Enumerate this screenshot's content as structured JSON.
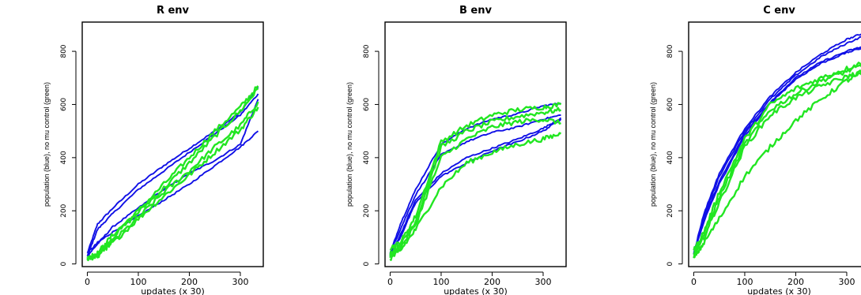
{
  "chart_data": [
    {
      "type": "line",
      "title": "R env",
      "xlabel": "updates (x 30)",
      "ylabel": "population (blue), no mu control (green)",
      "xticks": [
        0,
        100,
        200,
        300
      ],
      "yticks": [
        0,
        200,
        400,
        600,
        800
      ],
      "xlim": [
        -10,
        345
      ],
      "ylim": [
        -10,
        910
      ],
      "colors": {
        "treatment": "#1010e6",
        "control": "#22e622"
      },
      "series": [
        {
          "color": "blue",
          "x": [
            0,
            20,
            50,
            100,
            150,
            200,
            250,
            300,
            335
          ],
          "y": [
            40,
            150,
            210,
            300,
            370,
            435,
            500,
            570,
            665
          ]
        },
        {
          "color": "blue",
          "x": [
            0,
            20,
            50,
            100,
            150,
            200,
            250,
            300,
            335
          ],
          "y": [
            30,
            130,
            190,
            280,
            350,
            420,
            490,
            560,
            640
          ]
        },
        {
          "color": "blue",
          "x": [
            0,
            20,
            50,
            100,
            150,
            200,
            250,
            300,
            335
          ],
          "y": [
            30,
            75,
            140,
            210,
            280,
            340,
            390,
            450,
            620
          ]
        },
        {
          "color": "blue",
          "x": [
            0,
            20,
            50,
            100,
            150,
            200,
            250,
            300,
            335
          ],
          "y": [
            40,
            80,
            120,
            180,
            240,
            300,
            370,
            440,
            500
          ]
        },
        {
          "color": "green",
          "x": [
            0,
            20,
            50,
            100,
            150,
            200,
            250,
            300,
            335
          ],
          "y": [
            20,
            40,
            110,
            200,
            300,
            400,
            500,
            590,
            670
          ]
        },
        {
          "color": "green",
          "x": [
            0,
            20,
            50,
            100,
            150,
            200,
            250,
            300,
            335
          ],
          "y": [
            20,
            40,
            100,
            195,
            285,
            380,
            480,
            575,
            660
          ]
        },
        {
          "color": "green",
          "x": [
            0,
            20,
            50,
            100,
            150,
            200,
            250,
            300,
            335
          ],
          "y": [
            20,
            30,
            85,
            175,
            270,
            350,
            440,
            520,
            610
          ]
        },
        {
          "color": "green",
          "x": [
            0,
            20,
            50,
            100,
            150,
            200,
            250,
            300,
            335
          ],
          "y": [
            20,
            30,
            80,
            170,
            255,
            335,
            420,
            505,
            590
          ]
        }
      ]
    },
    {
      "type": "line",
      "title": "B env",
      "xlabel": "updates (x 30)",
      "ylabel": "population (blue), no mu control (green)",
      "xticks": [
        0,
        100,
        200,
        300
      ],
      "yticks": [
        0,
        200,
        400,
        600,
        800
      ],
      "xlim": [
        -10,
        345
      ],
      "ylim": [
        -10,
        910
      ],
      "colors": {
        "treatment": "#1010e6",
        "control": "#22e622"
      },
      "series": [
        {
          "color": "blue",
          "x": [
            0,
            20,
            50,
            100,
            150,
            200,
            250,
            300,
            335
          ],
          "y": [
            40,
            150,
            280,
            450,
            510,
            545,
            565,
            595,
            605
          ]
        },
        {
          "color": "blue",
          "x": [
            0,
            20,
            50,
            100,
            150,
            200,
            250,
            300,
            335
          ],
          "y": [
            40,
            130,
            260,
            410,
            460,
            495,
            515,
            545,
            560
          ]
        },
        {
          "color": "blue",
          "x": [
            0,
            20,
            50,
            100,
            150,
            200,
            250,
            300,
            335
          ],
          "y": [
            30,
            110,
            240,
            340,
            400,
            435,
            470,
            510,
            550
          ]
        },
        {
          "color": "blue",
          "x": [
            0,
            20,
            50,
            100,
            150,
            200,
            250,
            300,
            335
          ],
          "y": [
            30,
            100,
            230,
            330,
            380,
            425,
            460,
            500,
            545
          ]
        },
        {
          "color": "green",
          "x": [
            0,
            20,
            50,
            100,
            150,
            200,
            250,
            300,
            335
          ],
          "y": [
            60,
            80,
            180,
            460,
            520,
            560,
            580,
            590,
            600
          ]
        },
        {
          "color": "green",
          "x": [
            0,
            20,
            50,
            100,
            150,
            200,
            250,
            300,
            335
          ],
          "y": [
            40,
            70,
            160,
            440,
            500,
            535,
            555,
            570,
            580
          ]
        },
        {
          "color": "green",
          "x": [
            0,
            20,
            50,
            100,
            150,
            200,
            250,
            300,
            335
          ],
          "y": [
            30,
            60,
            150,
            400,
            470,
            515,
            535,
            545,
            530
          ]
        },
        {
          "color": "green",
          "x": [
            0,
            20,
            50,
            100,
            150,
            200,
            250,
            300,
            335
          ],
          "y": [
            20,
            50,
            130,
            290,
            380,
            420,
            450,
            470,
            490
          ]
        }
      ]
    },
    {
      "type": "line",
      "title": "C env",
      "xlabel": "updates (x 30)",
      "ylabel": "population (blue), no mu control (green)",
      "xticks": [
        0,
        100,
        200,
        300
      ],
      "yticks": [
        0,
        200,
        400,
        600,
        800
      ],
      "xlim": [
        -10,
        345
      ],
      "ylim": [
        -10,
        910
      ],
      "colors": {
        "treatment": "#1010e6",
        "control": "#22e622"
      },
      "series": [
        {
          "color": "blue",
          "x": [
            0,
            20,
            50,
            100,
            150,
            200,
            250,
            300,
            335
          ],
          "y": [
            40,
            190,
            340,
            510,
            630,
            720,
            790,
            845,
            870
          ]
        },
        {
          "color": "blue",
          "x": [
            0,
            20,
            50,
            100,
            150,
            200,
            250,
            300,
            335
          ],
          "y": [
            40,
            180,
            330,
            500,
            620,
            710,
            780,
            830,
            860
          ]
        },
        {
          "color": "blue",
          "x": [
            0,
            20,
            50,
            100,
            150,
            200,
            250,
            300,
            335
          ],
          "y": [
            35,
            170,
            310,
            490,
            610,
            700,
            760,
            800,
            820
          ]
        },
        {
          "color": "blue",
          "x": [
            0,
            20,
            50,
            100,
            150,
            200,
            250,
            300,
            335
          ],
          "y": [
            35,
            160,
            300,
            480,
            605,
            695,
            755,
            795,
            815
          ]
        },
        {
          "color": "green",
          "x": [
            0,
            20,
            50,
            100,
            150,
            200,
            250,
            300,
            335
          ],
          "y": [
            50,
            120,
            270,
            470,
            600,
            660,
            700,
            735,
            760
          ]
        },
        {
          "color": "green",
          "x": [
            0,
            20,
            50,
            100,
            150,
            200,
            250,
            300,
            335
          ],
          "y": [
            40,
            110,
            250,
            450,
            580,
            640,
            690,
            725,
            750
          ]
        },
        {
          "color": "green",
          "x": [
            0,
            20,
            50,
            100,
            150,
            200,
            250,
            300,
            335
          ],
          "y": [
            30,
            100,
            230,
            440,
            560,
            625,
            670,
            705,
            725
          ]
        },
        {
          "color": "green",
          "x": [
            0,
            20,
            50,
            100,
            150,
            200,
            250,
            300,
            335
          ],
          "y": [
            20,
            80,
            170,
            330,
            440,
            540,
            620,
            690,
            720
          ]
        }
      ]
    }
  ]
}
